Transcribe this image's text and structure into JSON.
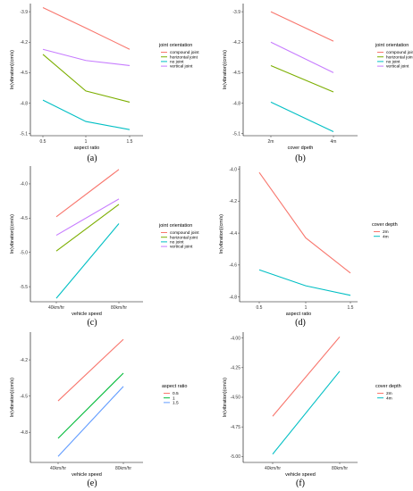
{
  "chart_data": [
    {
      "id": "a",
      "panel_label": "(a)",
      "type": "line",
      "xlabel": "aspect ratio",
      "ylabel": "ln(vibration)(cm/s)",
      "x_ticks": [
        "0.5",
        "1",
        "1.5"
      ],
      "y_ticks": [
        "-3.9",
        "-4.2",
        "-4.5",
        "-4.8",
        "-5.1"
      ],
      "y_tick_values": [
        -3.9,
        -4.2,
        -4.5,
        -4.8,
        -5.1
      ],
      "ylim": [
        -5.12,
        -3.82
      ],
      "legend_title": "joint  orientation",
      "series": [
        {
          "name": "compound joint",
          "color": "#f8766d",
          "values": [
            -3.86,
            -4.06,
            -4.27
          ]
        },
        {
          "name": "horizontal joint",
          "color": "#7cae00",
          "values": [
            -4.32,
            -4.68,
            -4.79
          ]
        },
        {
          "name": "no joint",
          "color": "#00bfc4",
          "values": [
            -4.77,
            -4.98,
            -5.06
          ]
        },
        {
          "name": "vertical joint",
          "color": "#c77cff",
          "values": [
            -4.27,
            -4.38,
            -4.43
          ]
        }
      ]
    },
    {
      "id": "b",
      "panel_label": "(b)",
      "type": "line",
      "xlabel": "cover dpeth",
      "ylabel": "ln(vibration)(cm/s)",
      "x_ticks": [
        "2m",
        "4m"
      ],
      "y_ticks": [
        "-3.9",
        "-4.2",
        "-4.5",
        "-4.8",
        "-5.1"
      ],
      "y_tick_values": [
        -3.9,
        -4.2,
        -4.5,
        -4.8,
        -5.1
      ],
      "ylim": [
        -5.12,
        -3.82
      ],
      "legend_title": "joint  orientation",
      "series": [
        {
          "name": "compound joint",
          "color": "#f8766d",
          "values": [
            -3.9,
            -4.19
          ]
        },
        {
          "name": "horizontal joint",
          "color": "#7cae00",
          "values": [
            -4.43,
            -4.69
          ]
        },
        {
          "name": "no joint",
          "color": "#00bfc4",
          "values": [
            -4.79,
            -5.08
          ]
        },
        {
          "name": "vertical joint",
          "color": "#c77cff",
          "values": [
            -4.2,
            -4.5
          ]
        }
      ]
    },
    {
      "id": "c",
      "panel_label": "(c)",
      "type": "line",
      "xlabel": "vehicle speed",
      "ylabel": "ln(vibration)(cm/s)",
      "x_ticks": [
        "40km/hr",
        "80km/hr"
      ],
      "y_ticks": [
        "-4.0",
        "-4.5",
        "-5.0",
        "-5.5"
      ],
      "y_tick_values": [
        -4.0,
        -4.5,
        -5.0,
        -5.5
      ],
      "ylim": [
        -5.72,
        -3.74
      ],
      "legend_title": "joint  orientation",
      "series": [
        {
          "name": "compound joint",
          "color": "#f8766d",
          "values": [
            -4.48,
            -3.79
          ]
        },
        {
          "name": "horizontal joint",
          "color": "#7cae00",
          "values": [
            -4.98,
            -4.3
          ]
        },
        {
          "name": "no joint",
          "color": "#00bfc4",
          "values": [
            -5.67,
            -4.58
          ]
        },
        {
          "name": "vertical joint",
          "color": "#c77cff",
          "values": [
            -4.75,
            -4.22
          ]
        }
      ]
    },
    {
      "id": "d",
      "panel_label": "(d)",
      "type": "line",
      "xlabel": "aspect ratio",
      "ylabel": "ln(vibration)(cm/s)",
      "x_ticks": [
        "0.5",
        "1",
        "1.5"
      ],
      "y_ticks": [
        "-4.0",
        "-4.2",
        "-4.4",
        "-4.6",
        "-4.8"
      ],
      "y_tick_values": [
        -4.0,
        -4.2,
        -4.4,
        -4.6,
        -4.8
      ],
      "ylim": [
        -4.83,
        -3.98
      ],
      "legend_title": "cover  depth",
      "series": [
        {
          "name": "2m",
          "color": "#f8766d",
          "values": [
            -4.02,
            -4.43,
            -4.65
          ]
        },
        {
          "name": "4m",
          "color": "#00bfc4",
          "values": [
            -4.63,
            -4.73,
            -4.79
          ]
        }
      ]
    },
    {
      "id": "e",
      "panel_label": "(e)",
      "type": "line",
      "xlabel": "vehicle speed",
      "ylabel": "ln(vibration)(cm/s)",
      "x_ticks": [
        "40km/hr",
        "80km/hr"
      ],
      "y_ticks": [
        "-4.2",
        "-4.5",
        "-4.8"
      ],
      "y_tick_values": [
        -4.2,
        -4.5,
        -4.8
      ],
      "ylim": [
        -5.05,
        -3.97
      ],
      "legend_title": "aspect  ratio",
      "series": [
        {
          "name": "0.5",
          "color": "#f8766d",
          "values": [
            -4.54,
            -4.03
          ]
        },
        {
          "name": "1",
          "color": "#00ba38",
          "values": [
            -4.85,
            -4.31
          ]
        },
        {
          "name": "1.5",
          "color": "#619cff",
          "values": [
            -5.0,
            -4.42
          ]
        }
      ]
    },
    {
      "id": "f",
      "panel_label": "(f)",
      "type": "line",
      "xlabel": "vehicle speed",
      "ylabel": "ln(vibration)(cm/s)",
      "x_ticks": [
        "40km/hr",
        "80km/hr"
      ],
      "y_ticks": [
        "-4.00",
        "-4.25",
        "-4.50",
        "-4.75",
        "-5.00"
      ],
      "y_tick_values": [
        -4.0,
        -4.25,
        -4.5,
        -4.75,
        -5.0
      ],
      "ylim": [
        -5.05,
        -3.95
      ],
      "legend_title": "cover  depth",
      "series": [
        {
          "name": "2m",
          "color": "#f8766d",
          "values": [
            -4.66,
            -3.99
          ]
        },
        {
          "name": "4m",
          "color": "#00bfc4",
          "values": [
            -4.98,
            -4.28
          ]
        }
      ]
    }
  ]
}
